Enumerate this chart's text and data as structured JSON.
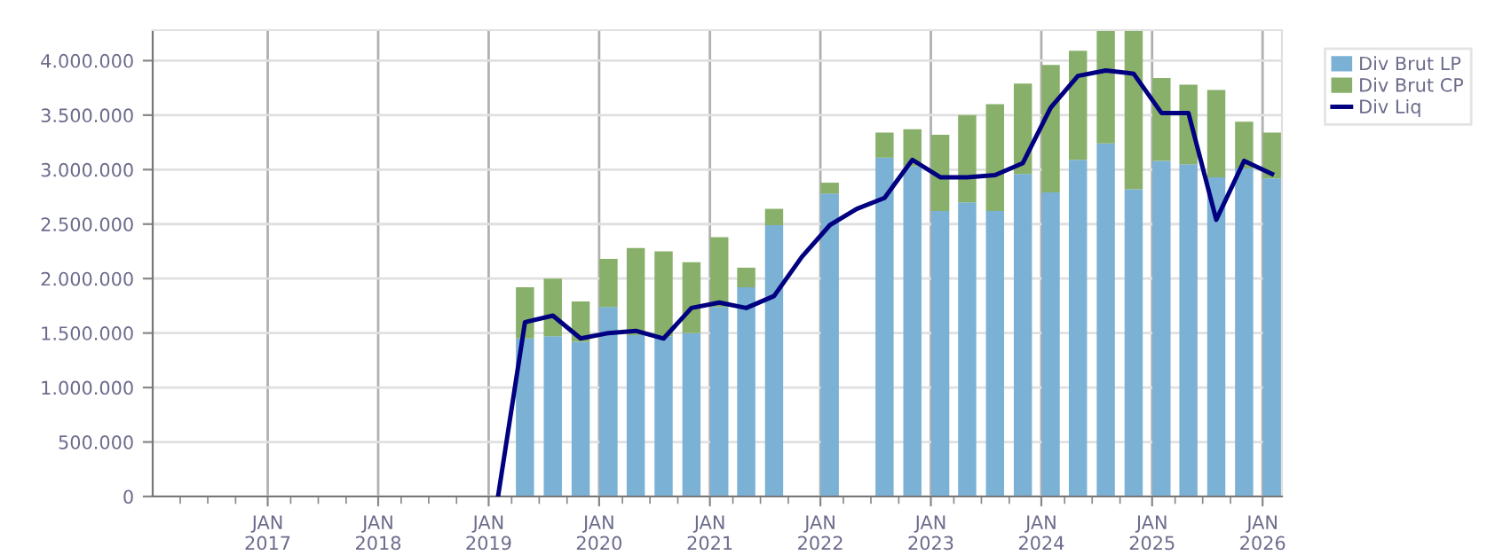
{
  "chart_data": {
    "type": "bar",
    "stacked": true,
    "x": [
      "2019-02",
      "2019-05",
      "2019-08",
      "2019-11",
      "2020-02",
      "2020-05",
      "2020-08",
      "2020-11",
      "2021-02",
      "2021-05",
      "2021-08",
      "2021-11",
      "2022-02",
      "2022-05",
      "2022-08",
      "2022-11",
      "2023-02",
      "2023-05",
      "2023-08",
      "2023-11",
      "2024-02",
      "2024-05",
      "2024-08",
      "2024-11",
      "2025-02",
      "2025-05",
      "2025-08",
      "2025-11",
      "2026-02"
    ],
    "series": [
      {
        "name": "Div Brut LP",
        "color": "#7ab1d5",
        "values": [
          null,
          1450000,
          1470000,
          1420000,
          1740000,
          1480000,
          1470000,
          1500000,
          1740000,
          1920000,
          2490000,
          null,
          2780000,
          null,
          3110000,
          3030000,
          2620000,
          2700000,
          2620000,
          2960000,
          2790000,
          3090000,
          3240000,
          2820000,
          3080000,
          3050000,
          2930000,
          3010000,
          2920000
        ]
      },
      {
        "name": "Div Brut CP",
        "color": "#88b06a",
        "values": [
          null,
          470000,
          530000,
          370000,
          440000,
          800000,
          780000,
          650000,
          640000,
          180000,
          150000,
          null,
          100000,
          null,
          230000,
          340000,
          700000,
          800000,
          980000,
          830000,
          1170000,
          1000000,
          1040000,
          1460000,
          760000,
          730000,
          800000,
          430000,
          420000
        ]
      },
      {
        "name": "Div Liq",
        "type": "line",
        "color": "#000080",
        "values": [
          0,
          1600000,
          1660000,
          1450000,
          1500000,
          1520000,
          1450000,
          1730000,
          1780000,
          1730000,
          1840000,
          2200000,
          2490000,
          2640000,
          2740000,
          3090000,
          2930000,
          2930000,
          2950000,
          3060000,
          3570000,
          3860000,
          3910000,
          3880000,
          3520000,
          3520000,
          2540000,
          3080000,
          2960000
        ]
      }
    ],
    "xlim": [
      "2016-01-01",
      "2026-03-20"
    ],
    "xticks": [
      {
        "value": "2017-01",
        "label": "JAN\n2017"
      },
      {
        "value": "2018-01",
        "label": "JAN\n2018"
      },
      {
        "value": "2019-01",
        "label": "JAN\n2019"
      },
      {
        "value": "2020-01",
        "label": "JAN\n2020"
      },
      {
        "value": "2021-01",
        "label": "JAN\n2021"
      },
      {
        "value": "2022-01",
        "label": "JAN\n2022"
      },
      {
        "value": "2023-01",
        "label": "JAN\n2023"
      },
      {
        "value": "2024-01",
        "label": "JAN\n2024"
      },
      {
        "value": "2025-01",
        "label": "JAN\n2025"
      },
      {
        "value": "2026-01",
        "label": "JAN\n2026"
      }
    ],
    "ylim": [
      0,
      4280000
    ],
    "yticks": [
      0,
      {
        "value": 500000,
        "label": "500.000"
      },
      {
        "value": 1000000,
        "label": "1.000.000"
      },
      {
        "value": 1500000,
        "label": "1.500.000"
      },
      {
        "value": 2000000,
        "label": "2.000.000"
      },
      {
        "value": 2500000,
        "label": "2.500.000"
      },
      {
        "value": 3000000,
        "label": "3.000.000"
      },
      {
        "value": 3500000,
        "label": "3.500.000"
      },
      {
        "value": 4000000,
        "label": "4.000.000"
      }
    ],
    "grid": true,
    "legend": "top right"
  }
}
